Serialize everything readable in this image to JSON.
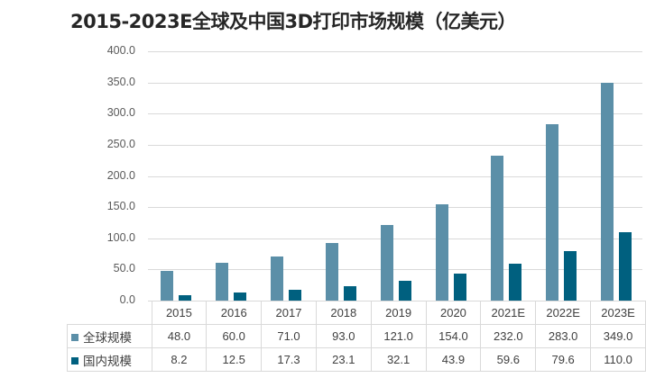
{
  "title": "2015-2023E全球及中国3D打印市场规模（亿美元）",
  "colors": {
    "global": "#5b8fa8",
    "domestic": "#00607f",
    "grid": "#d9d9d9"
  },
  "y_axis": {
    "ticks": [
      "400.0",
      "350.0",
      "300.0",
      "250.0",
      "200.0",
      "150.0",
      "100.0",
      "50.0",
      "0.0"
    ]
  },
  "table": {
    "headers": [
      "2015",
      "2016",
      "2017",
      "2018",
      "2019",
      "2020",
      "2021E",
      "2022E",
      "2023E"
    ],
    "rows": [
      {
        "label": "全球规模",
        "values": [
          "48.0",
          "60.0",
          "71.0",
          "93.0",
          "121.0",
          "154.0",
          "232.0",
          "283.0",
          "349.0"
        ]
      },
      {
        "label": "国内规模",
        "values": [
          "8.2",
          "12.5",
          "17.3",
          "23.1",
          "32.1",
          "43.9",
          "59.6",
          "79.6",
          "110.0"
        ]
      }
    ]
  },
  "chart_data": {
    "type": "bar",
    "title": "2015-2023E全球及中国3D打印市场规模（亿美元）",
    "categories": [
      "2015",
      "2016",
      "2017",
      "2018",
      "2019",
      "2020",
      "2021E",
      "2022E",
      "2023E"
    ],
    "series": [
      {
        "name": "全球规模",
        "color": "#5b8fa8",
        "values": [
          48.0,
          60.0,
          71.0,
          93.0,
          121.0,
          154.0,
          232.0,
          283.0,
          349.0
        ]
      },
      {
        "name": "国内规模",
        "color": "#00607f",
        "values": [
          8.2,
          12.5,
          17.3,
          23.1,
          32.1,
          43.9,
          59.6,
          79.6,
          110.0
        ]
      }
    ],
    "xlabel": "",
    "ylabel": "",
    "ylim": [
      0,
      400
    ],
    "yticks": [
      0,
      50,
      100,
      150,
      200,
      250,
      300,
      350,
      400
    ],
    "grid": true,
    "legend_position": "data-table"
  }
}
